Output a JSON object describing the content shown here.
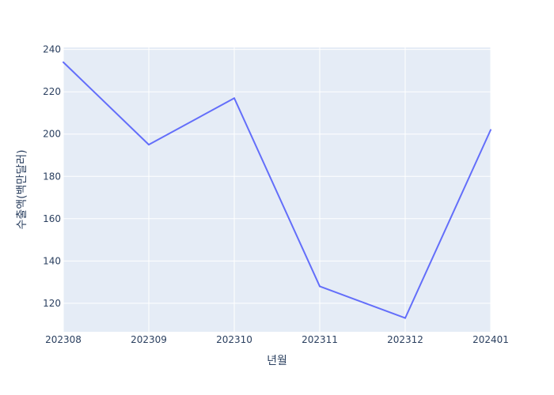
{
  "chart_data": {
    "type": "line",
    "title": "",
    "xlabel": "년월",
    "ylabel": "수출액(백만달러)",
    "categories": [
      "202308",
      "202309",
      "202310",
      "202311",
      "202312",
      "202401"
    ],
    "series": [
      {
        "values": [
          234,
          195,
          217,
          128,
          113,
          202
        ]
      }
    ],
    "ylim": [
      106.5,
      241
    ],
    "yticks": [
      120,
      140,
      160,
      180,
      200,
      220,
      240
    ],
    "grid": true,
    "colors": {
      "line": "#636efa",
      "plot_bg": "#e5ecf6",
      "grid": "#ffffff",
      "text": "#2a3f5f"
    }
  }
}
